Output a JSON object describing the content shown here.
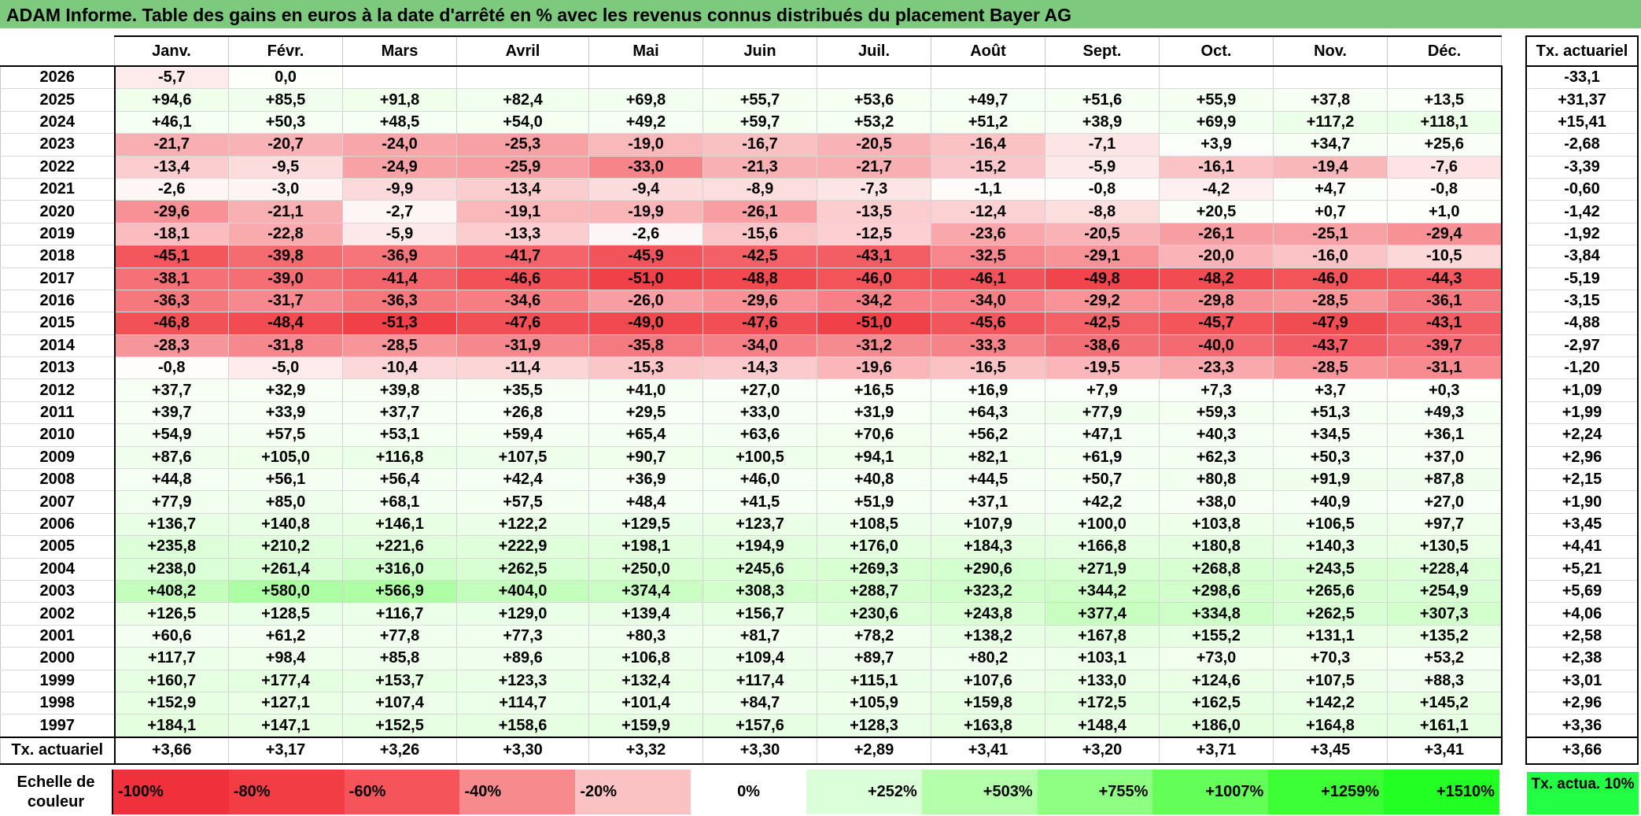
{
  "title": "ADAM Informe. Table des gains en euros à la date d'arrêté en % avec les revenus connus distribués du placement Bayer AG",
  "months": [
    "Janv.",
    "Févr.",
    "Mars",
    "Avril",
    "Mai",
    "Juin",
    "Juil.",
    "Août",
    "Sept.",
    "Oct.",
    "Nov.",
    "Déc."
  ],
  "side_header": "Tx. actuariel",
  "rows": [
    {
      "year": "2026",
      "values": [
        "-5,7",
        "0,0",
        "",
        "",
        "",
        "",
        "",
        "",
        "",
        "",
        "",
        ""
      ],
      "rate": "-33,1"
    },
    {
      "year": "2025",
      "values": [
        "+94,6",
        "+85,5",
        "+91,8",
        "+82,4",
        "+69,8",
        "+55,7",
        "+53,6",
        "+49,7",
        "+51,6",
        "+55,9",
        "+37,8",
        "+13,5"
      ],
      "rate": "+31,37"
    },
    {
      "year": "2024",
      "values": [
        "+46,1",
        "+50,3",
        "+48,5",
        "+54,0",
        "+49,2",
        "+59,7",
        "+53,2",
        "+51,2",
        "+38,9",
        "+69,9",
        "+117,2",
        "+118,1"
      ],
      "rate": "+15,41"
    },
    {
      "year": "2023",
      "values": [
        "-21,7",
        "-20,7",
        "-24,0",
        "-25,3",
        "-19,0",
        "-16,7",
        "-20,5",
        "-16,4",
        "-7,1",
        "+3,9",
        "+34,7",
        "+25,6"
      ],
      "rate": "-2,68"
    },
    {
      "year": "2022",
      "values": [
        "-13,4",
        "-9,5",
        "-24,9",
        "-25,9",
        "-33,0",
        "-21,3",
        "-21,7",
        "-15,2",
        "-5,9",
        "-16,1",
        "-19,4",
        "-7,6"
      ],
      "rate": "-3,39"
    },
    {
      "year": "2021",
      "values": [
        "-2,6",
        "-3,0",
        "-9,9",
        "-13,4",
        "-9,4",
        "-8,9",
        "-7,3",
        "-1,1",
        "-0,8",
        "-4,2",
        "+4,7",
        "-0,8"
      ],
      "rate": "-0,60"
    },
    {
      "year": "2020",
      "values": [
        "-29,6",
        "-21,1",
        "-2,7",
        "-19,1",
        "-19,9",
        "-26,1",
        "-13,5",
        "-12,4",
        "-8,8",
        "+20,5",
        "+0,7",
        "+1,0"
      ],
      "rate": "-1,42"
    },
    {
      "year": "2019",
      "values": [
        "-18,1",
        "-22,8",
        "-5,9",
        "-13,3",
        "-2,6",
        "-15,6",
        "-12,5",
        "-23,6",
        "-20,5",
        "-26,1",
        "-25,1",
        "-29,4"
      ],
      "rate": "-1,92"
    },
    {
      "year": "2018",
      "values": [
        "-45,1",
        "-39,8",
        "-36,9",
        "-41,7",
        "-45,9",
        "-42,5",
        "-43,1",
        "-32,5",
        "-29,1",
        "-20,0",
        "-16,0",
        "-10,5"
      ],
      "rate": "-3,84"
    },
    {
      "year": "2017",
      "values": [
        "-38,1",
        "-39,0",
        "-41,4",
        "-46,6",
        "-51,0",
        "-48,8",
        "-46,0",
        "-46,1",
        "-49,8",
        "-48,2",
        "-46,0",
        "-44,3"
      ],
      "rate": "-5,19"
    },
    {
      "year": "2016",
      "values": [
        "-36,3",
        "-31,7",
        "-36,3",
        "-34,6",
        "-26,0",
        "-29,6",
        "-34,2",
        "-34,0",
        "-29,2",
        "-29,8",
        "-28,5",
        "-36,1"
      ],
      "rate": "-3,15"
    },
    {
      "year": "2015",
      "values": [
        "-46,8",
        "-48,4",
        "-51,3",
        "-47,6",
        "-49,0",
        "-47,6",
        "-51,0",
        "-45,6",
        "-42,5",
        "-45,7",
        "-47,9",
        "-43,1"
      ],
      "rate": "-4,88"
    },
    {
      "year": "2014",
      "values": [
        "-28,3",
        "-31,8",
        "-28,5",
        "-31,9",
        "-35,8",
        "-34,0",
        "-31,2",
        "-33,3",
        "-38,6",
        "-40,0",
        "-43,7",
        "-39,7"
      ],
      "rate": "-2,97"
    },
    {
      "year": "2013",
      "values": [
        "-0,8",
        "-5,0",
        "-10,4",
        "-11,4",
        "-15,3",
        "-14,3",
        "-19,6",
        "-16,5",
        "-19,5",
        "-23,3",
        "-28,5",
        "-31,1"
      ],
      "rate": "-1,20"
    },
    {
      "year": "2012",
      "values": [
        "+37,7",
        "+32,9",
        "+39,8",
        "+35,5",
        "+41,0",
        "+27,0",
        "+16,5",
        "+16,9",
        "+7,9",
        "+7,3",
        "+3,7",
        "+0,3"
      ],
      "rate": "+1,09"
    },
    {
      "year": "2011",
      "values": [
        "+39,7",
        "+33,9",
        "+37,7",
        "+26,8",
        "+29,5",
        "+33,0",
        "+31,9",
        "+64,3",
        "+77,9",
        "+59,3",
        "+51,3",
        "+49,3"
      ],
      "rate": "+1,99"
    },
    {
      "year": "2010",
      "values": [
        "+54,9",
        "+57,5",
        "+53,1",
        "+59,4",
        "+65,4",
        "+63,6",
        "+70,6",
        "+56,2",
        "+47,1",
        "+40,3",
        "+34,5",
        "+36,1"
      ],
      "rate": "+2,24"
    },
    {
      "year": "2009",
      "values": [
        "+87,6",
        "+105,0",
        "+116,8",
        "+107,5",
        "+90,7",
        "+100,5",
        "+94,1",
        "+82,1",
        "+61,9",
        "+62,3",
        "+50,3",
        "+37,0"
      ],
      "rate": "+2,96"
    },
    {
      "year": "2008",
      "values": [
        "+44,8",
        "+56,1",
        "+56,4",
        "+42,4",
        "+36,9",
        "+46,0",
        "+40,8",
        "+44,5",
        "+50,7",
        "+80,8",
        "+91,9",
        "+87,8"
      ],
      "rate": "+2,15"
    },
    {
      "year": "2007",
      "values": [
        "+77,9",
        "+85,0",
        "+68,1",
        "+57,5",
        "+48,4",
        "+41,5",
        "+51,9",
        "+37,1",
        "+42,2",
        "+38,0",
        "+40,9",
        "+27,0"
      ],
      "rate": "+1,90"
    },
    {
      "year": "2006",
      "values": [
        "+136,7",
        "+140,8",
        "+146,1",
        "+122,2",
        "+129,5",
        "+123,7",
        "+108,5",
        "+107,9",
        "+100,0",
        "+103,8",
        "+106,5",
        "+97,7"
      ],
      "rate": "+3,45"
    },
    {
      "year": "2005",
      "values": [
        "+235,8",
        "+210,2",
        "+221,6",
        "+222,9",
        "+198,1",
        "+194,9",
        "+176,0",
        "+184,3",
        "+166,8",
        "+180,8",
        "+140,3",
        "+130,5"
      ],
      "rate": "+4,41"
    },
    {
      "year": "2004",
      "values": [
        "+238,0",
        "+261,4",
        "+316,0",
        "+262,5",
        "+250,0",
        "+245,6",
        "+269,3",
        "+290,6",
        "+271,9",
        "+268,8",
        "+243,5",
        "+228,4"
      ],
      "rate": "+5,21"
    },
    {
      "year": "2003",
      "values": [
        "+408,2",
        "+580,0",
        "+566,9",
        "+404,0",
        "+374,4",
        "+308,3",
        "+288,7",
        "+323,2",
        "+344,2",
        "+298,6",
        "+265,6",
        "+254,9"
      ],
      "rate": "+5,69"
    },
    {
      "year": "2002",
      "values": [
        "+126,5",
        "+128,5",
        "+116,7",
        "+129,0",
        "+139,4",
        "+156,7",
        "+230,6",
        "+243,8",
        "+377,4",
        "+334,8",
        "+262,5",
        "+307,3"
      ],
      "rate": "+4,06"
    },
    {
      "year": "2001",
      "values": [
        "+60,6",
        "+61,2",
        "+77,8",
        "+77,3",
        "+80,3",
        "+81,7",
        "+78,2",
        "+138,2",
        "+167,8",
        "+155,2",
        "+131,1",
        "+135,2"
      ],
      "rate": "+2,58"
    },
    {
      "year": "2000",
      "values": [
        "+117,7",
        "+98,4",
        "+85,8",
        "+89,6",
        "+106,8",
        "+109,4",
        "+89,7",
        "+80,2",
        "+103,1",
        "+73,0",
        "+70,3",
        "+53,2"
      ],
      "rate": "+2,38"
    },
    {
      "year": "1999",
      "values": [
        "+160,7",
        "+177,4",
        "+153,7",
        "+123,3",
        "+132,4",
        "+117,4",
        "+115,1",
        "+107,6",
        "+133,0",
        "+124,6",
        "+107,5",
        "+88,3"
      ],
      "rate": "+3,01"
    },
    {
      "year": "1998",
      "values": [
        "+152,9",
        "+127,1",
        "+107,4",
        "+114,7",
        "+101,4",
        "+84,7",
        "+105,9",
        "+159,8",
        "+172,5",
        "+162,5",
        "+142,2",
        "+145,2"
      ],
      "rate": "+2,96"
    },
    {
      "year": "1997",
      "values": [
        "+184,1",
        "+147,1",
        "+152,5",
        "+158,6",
        "+159,9",
        "+157,6",
        "+128,3",
        "+163,8",
        "+148,4",
        "+186,0",
        "+164,8",
        "+161,1"
      ],
      "rate": "+3,36"
    }
  ],
  "totals": {
    "label": "Tx. actuariel",
    "values": [
      "+3,66",
      "+3,17",
      "+3,26",
      "+3,30",
      "+3,32",
      "+3,30",
      "+2,89",
      "+3,41",
      "+3,20",
      "+3,71",
      "+3,45",
      "+3,41"
    ],
    "rate": "+3,66"
  },
  "scale": {
    "label": "Echelle de couleur",
    "items": [
      {
        "text": "-100%",
        "color": "#f0303a",
        "kind": "neg"
      },
      {
        "text": "-80%",
        "color": "#f23d45",
        "kind": "neg"
      },
      {
        "text": "-60%",
        "color": "#f4545a",
        "kind": "neg"
      },
      {
        "text": "-40%",
        "color": "#f78a8c",
        "kind": "neg"
      },
      {
        "text": "-20%",
        "color": "#fbc2c3",
        "kind": "neg"
      },
      {
        "text": "0%",
        "color": "#ffffff",
        "kind": "mid"
      },
      {
        "text": "+252%",
        "color": "#dbffd8",
        "kind": "pos"
      },
      {
        "text": "+503%",
        "color": "#b3ffaa",
        "kind": "pos"
      },
      {
        "text": "+755%",
        "color": "#8eff82",
        "kind": "pos"
      },
      {
        "text": "+1007%",
        "color": "#63ff58",
        "kind": "pos"
      },
      {
        "text": "+1259%",
        "color": "#3cff35",
        "kind": "pos"
      },
      {
        "text": "+1510%",
        "color": "#22ff22",
        "kind": "pos"
      }
    ],
    "side_label": "Tx. actua. 10%",
    "side_color": "#22ff44"
  }
}
